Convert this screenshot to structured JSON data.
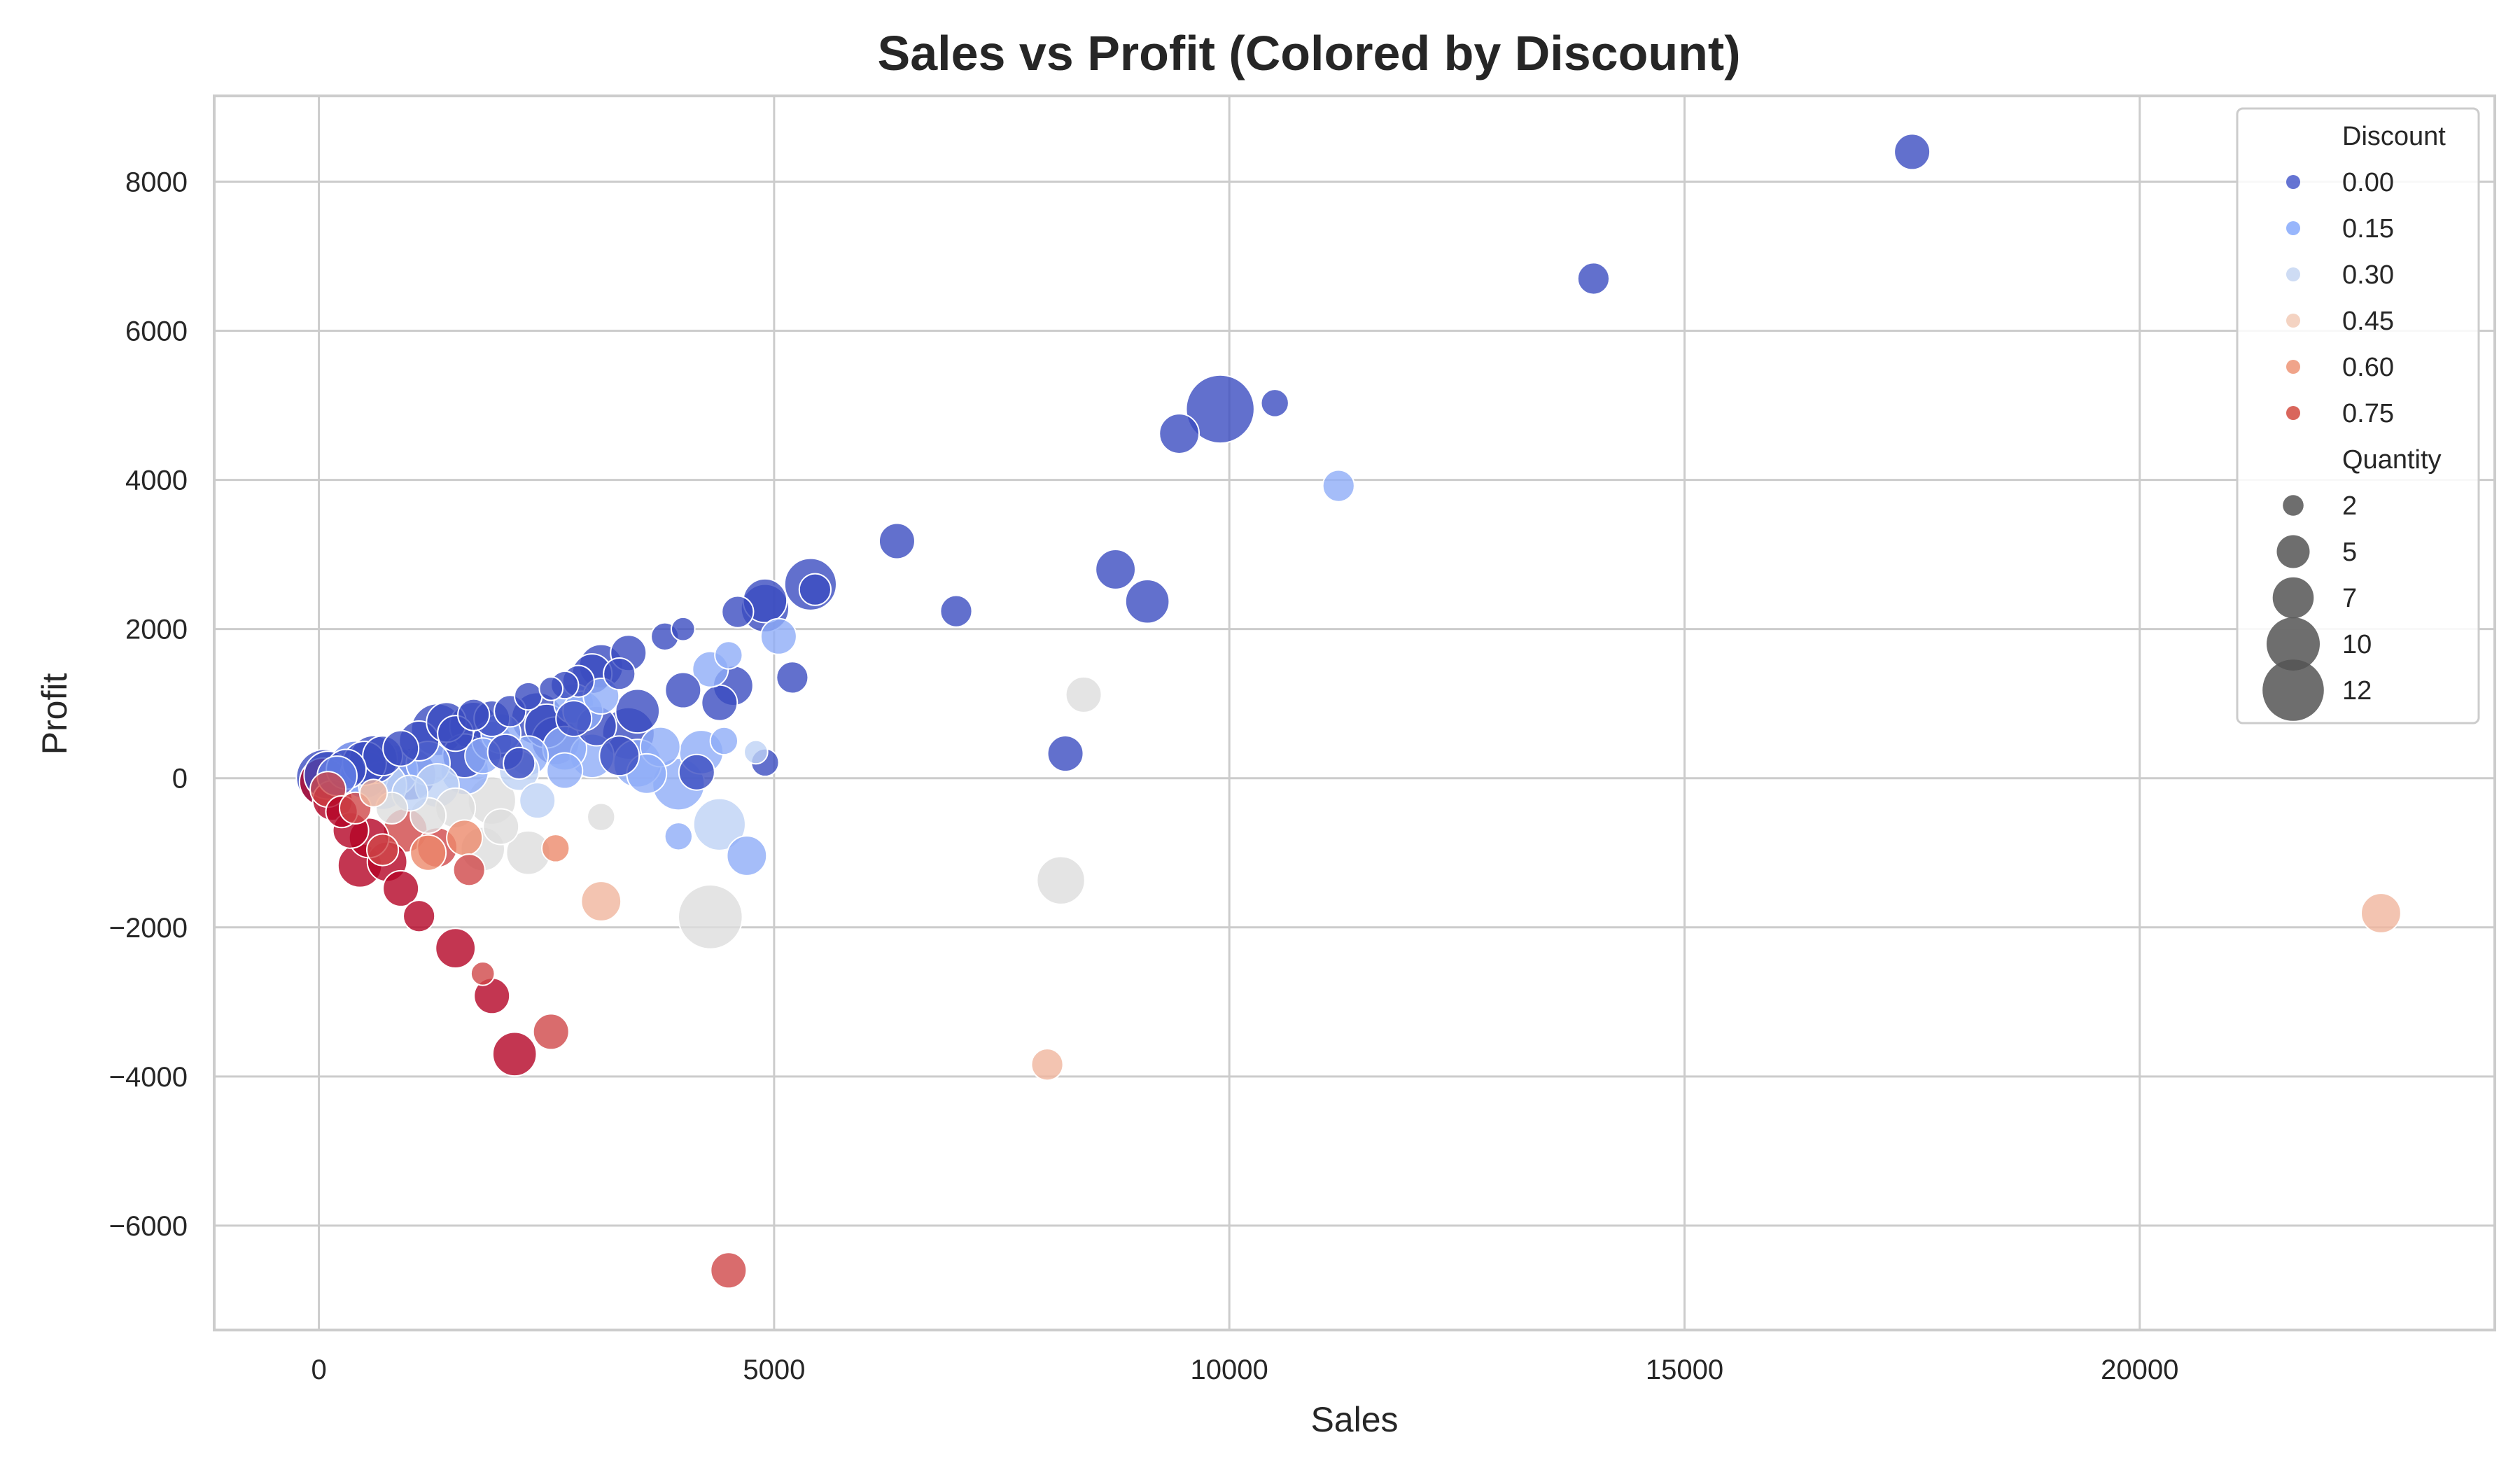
{
  "chart_data": {
    "type": "scatter",
    "title": "Sales vs Profit (Colored by Discount)",
    "xlabel": "Sales",
    "ylabel": "Profit",
    "xlim": [
      -1150,
      23900
    ],
    "ylim": [
      -7400,
      9150
    ],
    "x_ticks": [
      0,
      5000,
      10000,
      15000,
      20000
    ],
    "x_tick_labels": [
      "0",
      "5000",
      "10000",
      "15000",
      "20000"
    ],
    "y_ticks": [
      -6000,
      -4000,
      -2000,
      0,
      2000,
      4000,
      6000,
      8000
    ],
    "y_tick_labels": [
      "−6000",
      "−4000",
      "−2000",
      "0",
      "2000",
      "4000",
      "6000",
      "8000"
    ],
    "grid": true,
    "colormap": "coolwarm",
    "color_encoding": "Discount",
    "size_encoding": "Quantity",
    "legend": {
      "position": "top-right",
      "hue_title": "Discount",
      "hue_entries": [
        {
          "label": "0.00",
          "value": 0.0,
          "color": "#4a5ccb"
        },
        {
          "label": "0.15",
          "value": 0.15,
          "color": "#86a9fc"
        },
        {
          "label": "0.30",
          "value": 0.3,
          "color": "#c5d6f2"
        },
        {
          "label": "0.45",
          "value": 0.45,
          "color": "#f2cbb7"
        },
        {
          "label": "0.60",
          "value": 0.6,
          "color": "#ed9476"
        },
        {
          "label": "0.75",
          "value": 0.75,
          "color": "#d24b40"
        }
      ],
      "size_title": "Quantity",
      "size_entries": [
        {
          "label": "2",
          "value": 2
        },
        {
          "label": "5",
          "value": 5
        },
        {
          "label": "7",
          "value": 7
        },
        {
          "label": "10",
          "value": 10
        },
        {
          "label": "12",
          "value": 12
        }
      ]
    },
    "points": [
      {
        "x": 17500,
        "y": 8400,
        "discount": 0.0,
        "quantity": 5
      },
      {
        "x": 14000,
        "y": 6700,
        "discount": 0.0,
        "quantity": 4
      },
      {
        "x": 9900,
        "y": 4950,
        "discount": 0.0,
        "quantity": 13
      },
      {
        "x": 9450,
        "y": 4620,
        "discount": 0.0,
        "quantity": 6
      },
      {
        "x": 10500,
        "y": 5030,
        "discount": 0.0,
        "quantity": 3
      },
      {
        "x": 11200,
        "y": 3920,
        "discount": 0.2,
        "quantity": 4
      },
      {
        "x": 6350,
        "y": 3180,
        "discount": 0.0,
        "quantity": 5
      },
      {
        "x": 7000,
        "y": 2240,
        "discount": 0.0,
        "quantity": 4
      },
      {
        "x": 8750,
        "y": 2800,
        "discount": 0.0,
        "quantity": 6
      },
      {
        "x": 9100,
        "y": 2370,
        "discount": 0.0,
        "quantity": 7
      },
      {
        "x": 8200,
        "y": 330,
        "discount": 0.0,
        "quantity": 5
      },
      {
        "x": 8400,
        "y": 1120,
        "discount": 0.4,
        "quantity": 5
      },
      {
        "x": 8150,
        "y": -1370,
        "discount": 0.4,
        "quantity": 8
      },
      {
        "x": 8000,
        "y": -3840,
        "discount": 0.5,
        "quantity": 4
      },
      {
        "x": 22650,
        "y": -1810,
        "discount": 0.5,
        "quantity": 6
      },
      {
        "x": 4500,
        "y": -6600,
        "discount": 0.7,
        "quantity": 5
      },
      {
        "x": 5400,
        "y": 2600,
        "discount": 0.0,
        "quantity": 9
      },
      {
        "x": 5450,
        "y": 2530,
        "discount": 0.0,
        "quantity": 4
      },
      {
        "x": 4900,
        "y": 2380,
        "discount": 0.0,
        "quantity": 7
      },
      {
        "x": 4900,
        "y": 2280,
        "discount": 0.0,
        "quantity": 8
      },
      {
        "x": 4600,
        "y": 2230,
        "discount": 0.0,
        "quantity": 4
      },
      {
        "x": 5050,
        "y": 1900,
        "discount": 0.2,
        "quantity": 5
      },
      {
        "x": 5200,
        "y": 1350,
        "discount": 0.0,
        "quantity": 4
      },
      {
        "x": 4550,
        "y": 1240,
        "discount": 0.0,
        "quantity": 6
      },
      {
        "x": 4400,
        "y": 1010,
        "discount": 0.0,
        "quantity": 5
      },
      {
        "x": 4500,
        "y": 1650,
        "discount": 0.2,
        "quantity": 3
      },
      {
        "x": 4300,
        "y": 1460,
        "discount": 0.2,
        "quantity": 5
      },
      {
        "x": 4900,
        "y": 210,
        "discount": 0.0,
        "quantity": 3
      },
      {
        "x": 4800,
        "y": 350,
        "discount": 0.3,
        "quantity": 2
      },
      {
        "x": 4450,
        "y": 500,
        "discount": 0.2,
        "quantity": 3
      },
      {
        "x": 4400,
        "y": -620,
        "discount": 0.3,
        "quantity": 9
      },
      {
        "x": 4700,
        "y": -1040,
        "discount": 0.2,
        "quantity": 6
      },
      {
        "x": 4300,
        "y": -1860,
        "discount": 0.4,
        "quantity": 12
      },
      {
        "x": 3950,
        "y": -780,
        "discount": 0.2,
        "quantity": 3
      },
      {
        "x": 4000,
        "y": 1180,
        "discount": 0.0,
        "quantity": 5
      },
      {
        "x": 4000,
        "y": 2000,
        "discount": 0.0,
        "quantity": 2
      },
      {
        "x": 3800,
        "y": 1900,
        "discount": 0.0,
        "quantity": 3
      },
      {
        "x": 3400,
        "y": 1680,
        "discount": 0.0,
        "quantity": 5
      },
      {
        "x": 4150,
        "y": 80,
        "discount": 0.0,
        "quantity": 5
      },
      {
        "x": 3950,
        "y": -80,
        "discount": 0.2,
        "quantity": 9
      },
      {
        "x": 4200,
        "y": 350,
        "discount": 0.2,
        "quantity": 7
      },
      {
        "x": 3750,
        "y": 420,
        "discount": 0.2,
        "quantity": 6
      },
      {
        "x": 3500,
        "y": 900,
        "discount": 0.0,
        "quantity": 7
      },
      {
        "x": 3400,
        "y": 600,
        "discount": 0.0,
        "quantity": 9
      },
      {
        "x": 3500,
        "y": 200,
        "discount": 0.2,
        "quantity": 8
      },
      {
        "x": 3600,
        "y": 60,
        "discount": 0.2,
        "quantity": 6
      },
      {
        "x": 3100,
        "y": 1500,
        "discount": 0.0,
        "quantity": 7
      },
      {
        "x": 3000,
        "y": 1400,
        "discount": 0.0,
        "quantity": 6
      },
      {
        "x": 2850,
        "y": 1300,
        "discount": 0.0,
        "quantity": 4
      },
      {
        "x": 2700,
        "y": 1250,
        "discount": 0.0,
        "quantity": 3
      },
      {
        "x": 2550,
        "y": 1200,
        "discount": 0.0,
        "quantity": 2
      },
      {
        "x": 2300,
        "y": 1100,
        "discount": 0.0,
        "quantity": 3
      },
      {
        "x": 3100,
        "y": 1100,
        "discount": 0.2,
        "quantity": 5
      },
      {
        "x": 2800,
        "y": 1000,
        "discount": 0.2,
        "quantity": 6
      },
      {
        "x": 2400,
        "y": 800,
        "discount": 0.0,
        "quantity": 9
      },
      {
        "x": 2600,
        "y": 500,
        "discount": 0.0,
        "quantity": 8
      },
      {
        "x": 2800,
        "y": 800,
        "discount": 0.0,
        "quantity": 5
      },
      {
        "x": 3000,
        "y": 300,
        "discount": 0.2,
        "quantity": 7
      },
      {
        "x": 3050,
        "y": 700,
        "discount": 0.0,
        "quantity": 6
      },
      {
        "x": 2700,
        "y": 100,
        "discount": 0.2,
        "quantity": 5
      },
      {
        "x": 2300,
        "y": 300,
        "discount": 0.2,
        "quantity": 6
      },
      {
        "x": 2200,
        "y": 200,
        "discount": 0.0,
        "quantity": 4
      },
      {
        "x": 3100,
        "y": -520,
        "discount": 0.4,
        "quantity": 3
      },
      {
        "x": 3100,
        "y": -1650,
        "discount": 0.5,
        "quantity": 6
      },
      {
        "x": 2300,
        "y": -1000,
        "discount": 0.4,
        "quantity": 7
      },
      {
        "x": 2600,
        "y": -940,
        "discount": 0.6,
        "quantity": 3
      },
      {
        "x": 2400,
        "y": -300,
        "discount": 0.3,
        "quantity": 5
      },
      {
        "x": 2550,
        "y": -3400,
        "discount": 0.7,
        "quantity": 5
      },
      {
        "x": 2150,
        "y": -3700,
        "discount": 0.8,
        "quantity": 7
      },
      {
        "x": 1900,
        "y": -2920,
        "discount": 0.8,
        "quantity": 5
      },
      {
        "x": 1800,
        "y": -2620,
        "discount": 0.7,
        "quantity": 2
      },
      {
        "x": 1500,
        "y": -2280,
        "discount": 0.8,
        "quantity": 6
      },
      {
        "x": 1100,
        "y": -1850,
        "discount": 0.8,
        "quantity": 4
      },
      {
        "x": 900,
        "y": -1480,
        "discount": 0.8,
        "quantity": 5
      },
      {
        "x": 450,
        "y": -1170,
        "discount": 0.8,
        "quantity": 7
      },
      {
        "x": 750,
        "y": -1120,
        "discount": 0.8,
        "quantity": 6
      },
      {
        "x": 1650,
        "y": -1230,
        "discount": 0.7,
        "quantity": 4
      },
      {
        "x": 1300,
        "y": -930,
        "discount": 0.7,
        "quantity": 6
      },
      {
        "x": 950,
        "y": -700,
        "discount": 0.7,
        "quantity": 7
      },
      {
        "x": 700,
        "y": -960,
        "discount": 0.7,
        "quantity": 4
      },
      {
        "x": 1200,
        "y": -1000,
        "discount": 0.6,
        "quantity": 5
      },
      {
        "x": 550,
        "y": -800,
        "discount": 0.8,
        "quantity": 6
      },
      {
        "x": 350,
        "y": -700,
        "discount": 0.8,
        "quantity": 5
      },
      {
        "x": 250,
        "y": -450,
        "discount": 0.8,
        "quantity": 4
      },
      {
        "x": 150,
        "y": -300,
        "discount": 0.8,
        "quantity": 6
      },
      {
        "x": 100,
        "y": -150,
        "discount": 0.7,
        "quantity": 5
      },
      {
        "x": 50,
        "y": -50,
        "discount": 0.8,
        "quantity": 8
      },
      {
        "x": 400,
        "y": -400,
        "discount": 0.7,
        "quantity": 4
      },
      {
        "x": 1600,
        "y": -800,
        "discount": 0.6,
        "quantity": 5
      },
      {
        "x": 1800,
        "y": -950,
        "discount": 0.4,
        "quantity": 7
      },
      {
        "x": 1500,
        "y": -400,
        "discount": 0.4,
        "quantity": 6
      },
      {
        "x": 1900,
        "y": -300,
        "discount": 0.4,
        "quantity": 8
      },
      {
        "x": 1200,
        "y": -500,
        "discount": 0.4,
        "quantity": 5
      },
      {
        "x": 800,
        "y": -400,
        "discount": 0.4,
        "quantity": 4
      },
      {
        "x": 2000,
        "y": -650,
        "discount": 0.4,
        "quantity": 5
      },
      {
        "x": 600,
        "y": -200,
        "discount": 0.5,
        "quantity": 3
      },
      {
        "x": 1900,
        "y": 500,
        "discount": 0.0,
        "quantity": 6
      },
      {
        "x": 1700,
        "y": 700,
        "discount": 0.0,
        "quantity": 8
      },
      {
        "x": 1600,
        "y": 300,
        "discount": 0.0,
        "quantity": 7
      },
      {
        "x": 1500,
        "y": 600,
        "discount": 0.0,
        "quantity": 5
      },
      {
        "x": 1300,
        "y": 650,
        "discount": 0.0,
        "quantity": 9
      },
      {
        "x": 1100,
        "y": 500,
        "discount": 0.0,
        "quantity": 6
      },
      {
        "x": 900,
        "y": 400,
        "discount": 0.0,
        "quantity": 5
      },
      {
        "x": 700,
        "y": 300,
        "discount": 0.0,
        "quantity": 6
      },
      {
        "x": 500,
        "y": 200,
        "discount": 0.0,
        "quantity": 7
      },
      {
        "x": 300,
        "y": 120,
        "discount": 0.0,
        "quantity": 6
      },
      {
        "x": 100,
        "y": 40,
        "discount": 0.0,
        "quantity": 8
      },
      {
        "x": 1000,
        "y": 50,
        "discount": 0.0,
        "quantity": 9
      },
      {
        "x": 1600,
        "y": 100,
        "discount": 0.2,
        "quantity": 8
      },
      {
        "x": 1200,
        "y": 200,
        "discount": 0.2,
        "quantity": 7
      },
      {
        "x": 800,
        "y": 100,
        "discount": 0.2,
        "quantity": 9
      },
      {
        "x": 500,
        "y": 50,
        "discount": 0.2,
        "quantity": 8
      },
      {
        "x": 2000,
        "y": 600,
        "discount": 0.2,
        "quantity": 6
      },
      {
        "x": 1800,
        "y": 300,
        "discount": 0.2,
        "quantity": 5
      },
      {
        "x": 2100,
        "y": 900,
        "discount": 0.0,
        "quantity": 4
      },
      {
        "x": 1900,
        "y": 800,
        "discount": 0.0,
        "quantity": 5
      },
      {
        "x": 1700,
        "y": 850,
        "discount": 0.0,
        "quantity": 4
      },
      {
        "x": 1400,
        "y": 750,
        "discount": 0.0,
        "quantity": 6
      },
      {
        "x": 2200,
        "y": 100,
        "discount": 0.3,
        "quantity": 6
      },
      {
        "x": 1300,
        "y": -100,
        "discount": 0.3,
        "quantity": 7
      },
      {
        "x": 700,
        "y": -100,
        "discount": 0.3,
        "quantity": 8
      },
      {
        "x": 1000,
        "y": -200,
        "discount": 0.3,
        "quantity": 5
      },
      {
        "x": 200,
        "y": 30,
        "discount": 0.1,
        "quantity": 6
      },
      {
        "x": 60,
        "y": 10,
        "discount": 0.0,
        "quantity": 10
      },
      {
        "x": 400,
        "y": 150,
        "discount": 0.1,
        "quantity": 9
      },
      {
        "x": 600,
        "y": 250,
        "discount": 0.0,
        "quantity": 8
      },
      {
        "x": 2500,
        "y": 700,
        "discount": 0.0,
        "quantity": 7
      },
      {
        "x": 2900,
        "y": 900,
        "discount": 0.2,
        "quantity": 6
      },
      {
        "x": 2700,
        "y": 400,
        "discount": 0.2,
        "quantity": 7
      },
      {
        "x": 3300,
        "y": 300,
        "discount": 0.0,
        "quantity": 6
      },
      {
        "x": 3300,
        "y": 1400,
        "discount": 0.0,
        "quantity": 4
      },
      {
        "x": 2050,
        "y": 350,
        "discount": 0.0,
        "quantity": 5
      }
    ]
  }
}
